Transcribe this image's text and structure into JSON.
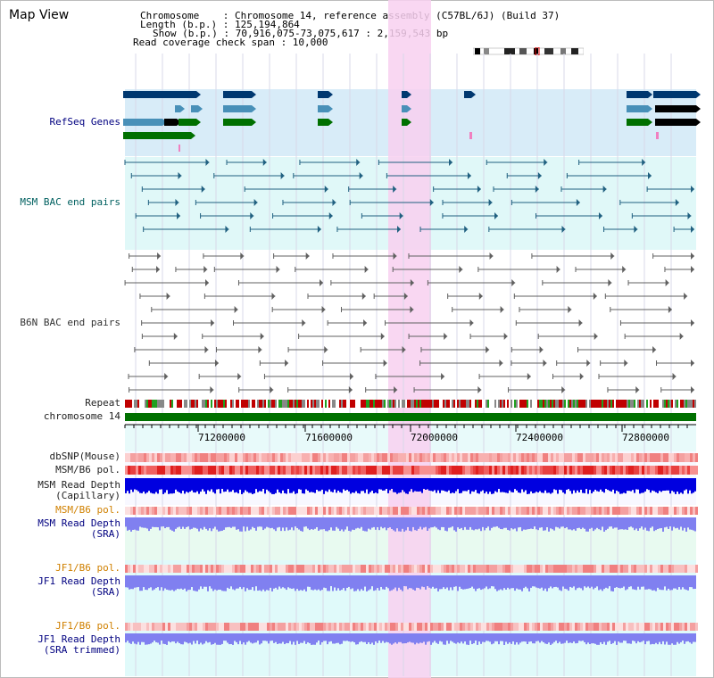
{
  "header": {
    "title": "Map View",
    "info_lines": [
      "Chromosome    : Chromosome 14, reference assembly (C57BL/6J) (Build 37)",
      "Length (b.p.) : 125,194,864",
      "Show (b.p.) : 70,916,075-73,075,617 : 2,159,543 bp",
      "Read coverage check span : 10,000"
    ]
  },
  "tracks": {
    "refseq_label": "RefSeq Genes",
    "msm_bac_label": "MSM BAC end pairs",
    "b6n_bac_label": "B6N BAC end pairs",
    "repeat_label": "Repeat",
    "chromosome_label": "chromosome 14",
    "dbsnp_label": "dbSNP(Mouse)",
    "msm_b6_pol_label": "MSM/B6 pol.",
    "msm_depth_cap_label_1": "MSM Read Depth",
    "msm_depth_cap_label_2": "(Capillary)",
    "msm_b6_pol_sra_label": "MSM/B6 pol.",
    "msm_depth_sra_label_1": "MSM Read Depth",
    "msm_depth_sra_label_2": "(SRA)",
    "jf1_pol_label": "JF1/B6 pol.",
    "jf1_depth_sra_label_1": "JF1 Read Depth",
    "jf1_depth_sra_label_2": "(SRA)",
    "jf1_pol_trim_label": "JF1/B6 pol.",
    "jf1_depth_trim_label_1": "JF1 Read Depth",
    "jf1_depth_trim_label_2": "(SRA trimmed)"
  },
  "axis": {
    "ticks": [
      "71200000",
      "71600000",
      "72000000",
      "72400000",
      "72800000"
    ]
  },
  "colors": {
    "refseq_bg": "#d8ecf8",
    "msm_bg": "#e0f8f8",
    "sra_bg": "#e8faf0",
    "jf1_bg": "#e0fafa",
    "highlight": "#f8d0f0",
    "chromosome": "#007000",
    "gene_dark": "#003870",
    "gene_mid": "#4890b8",
    "gene_green": "#007000",
    "msm_pair": "#206080",
    "b6n_pair": "#606060",
    "depth_blue": "#0000e0",
    "depth_sra": "#8080f0"
  }
}
